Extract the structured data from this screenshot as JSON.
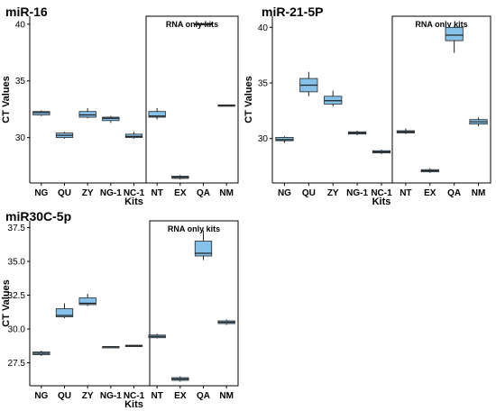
{
  "figure_kind": "three-panel box plot figure",
  "chart_data": [
    {
      "type": "box",
      "title": "miR-16",
      "xlabel": "Kits",
      "ylabel": "CT Values",
      "annotation": "RNA only kits",
      "categories": [
        "NG",
        "QU",
        "ZY",
        "NG-1",
        "NC-1",
        "NT",
        "EX",
        "QA",
        "NM"
      ],
      "ylim": [
        26,
        40.7
      ],
      "yticks": [
        30,
        35,
        40
      ],
      "boxes": [
        {
          "min": 31.9,
          "q1": 32.0,
          "median": 32.2,
          "q3": 32.3,
          "max": 32.4
        },
        {
          "min": 29.9,
          "q1": 30.0,
          "median": 30.2,
          "q3": 30.4,
          "max": 30.5
        },
        {
          "min": 31.7,
          "q1": 31.8,
          "median": 32.0,
          "q3": 32.3,
          "max": 32.6
        },
        {
          "min": 31.3,
          "q1": 31.5,
          "median": 31.7,
          "q3": 31.8,
          "max": 31.9
        },
        {
          "min": 29.9,
          "q1": 30.0,
          "median": 30.1,
          "q3": 30.3,
          "max": 30.5
        },
        {
          "min": 31.6,
          "q1": 31.8,
          "median": 31.9,
          "q3": 32.3,
          "max": 32.6
        },
        {
          "min": 26.3,
          "q1": 26.4,
          "median": 26.5,
          "q3": 26.6,
          "max": 26.7
        },
        {
          "min": 39.9,
          "q1": 39.95,
          "median": 40.0,
          "q3": 40.05,
          "max": 40.1
        },
        {
          "min": 32.8,
          "q1": 32.82,
          "median": 32.85,
          "q3": 32.88,
          "max": 32.9
        }
      ],
      "box_color": "#85c1e9"
    },
    {
      "type": "box",
      "title": "miR-21-5P",
      "xlabel": "Kits",
      "ylabel": "CT Values",
      "annotation": "RNA only kits",
      "categories": [
        "NG",
        "QU",
        "ZY",
        "NG-1",
        "NC-1",
        "NT",
        "EX",
        "QA",
        "NM"
      ],
      "ylim": [
        26,
        41
      ],
      "yticks": [
        30,
        35,
        40
      ],
      "boxes": [
        {
          "min": 29.6,
          "q1": 29.8,
          "median": 29.9,
          "q3": 30.1,
          "max": 30.2
        },
        {
          "min": 33.8,
          "q1": 34.2,
          "median": 34.8,
          "q3": 35.4,
          "max": 36.0
        },
        {
          "min": 32.9,
          "q1": 33.1,
          "median": 33.4,
          "q3": 33.8,
          "max": 34.3
        },
        {
          "min": 30.3,
          "q1": 30.4,
          "median": 30.5,
          "q3": 30.6,
          "max": 30.7
        },
        {
          "min": 28.6,
          "q1": 28.7,
          "median": 28.8,
          "q3": 28.9,
          "max": 29.0
        },
        {
          "min": 30.4,
          "q1": 30.5,
          "median": 30.6,
          "q3": 30.7,
          "max": 30.9
        },
        {
          "min": 26.9,
          "q1": 27.0,
          "median": 27.1,
          "q3": 27.2,
          "max": 27.3
        },
        {
          "min": 37.7,
          "q1": 38.8,
          "median": 39.3,
          "q3": 40.0,
          "max": 40.1
        },
        {
          "min": 31.1,
          "q1": 31.3,
          "median": 31.5,
          "q3": 31.7,
          "max": 31.9
        }
      ],
      "box_color": "#85c1e9"
    },
    {
      "type": "box",
      "title": "miR30C-5p",
      "xlabel": "Kits",
      "ylabel": "CT Values",
      "annotation": "RNA only kits",
      "categories": [
        "NG",
        "QU",
        "ZY",
        "NG-1",
        "NC-1",
        "NT",
        "EX",
        "QA",
        "NM"
      ],
      "ylim": [
        25.8,
        38
      ],
      "yticks": [
        27.5,
        30.0,
        32.5,
        35.0,
        37.5
      ],
      "ytick_labels": [
        "27.5",
        "30.0",
        "32.5",
        "35.0",
        "37.5"
      ],
      "boxes": [
        {
          "min": 28.0,
          "q1": 28.1,
          "median": 28.2,
          "q3": 28.3,
          "max": 28.4
        },
        {
          "min": 30.8,
          "q1": 30.9,
          "median": 31.0,
          "q3": 31.5,
          "max": 31.9
        },
        {
          "min": 31.7,
          "q1": 31.8,
          "median": 31.9,
          "q3": 32.3,
          "max": 32.6
        },
        {
          "min": 28.64,
          "q1": 28.66,
          "median": 28.68,
          "q3": 28.7,
          "max": 28.72
        },
        {
          "min": 28.7,
          "q1": 28.72,
          "median": 28.75,
          "q3": 28.8,
          "max": 28.82
        },
        {
          "min": 29.3,
          "q1": 29.35,
          "median": 29.45,
          "q3": 29.55,
          "max": 29.65
        },
        {
          "min": 26.1,
          "q1": 26.2,
          "median": 26.3,
          "q3": 26.4,
          "max": 26.5
        },
        {
          "min": 35.1,
          "q1": 35.4,
          "median": 35.6,
          "q3": 36.5,
          "max": 37.3
        },
        {
          "min": 30.3,
          "q1": 30.4,
          "median": 30.5,
          "q3": 30.6,
          "max": 30.7
        }
      ],
      "box_color": "#85c1e9"
    }
  ]
}
